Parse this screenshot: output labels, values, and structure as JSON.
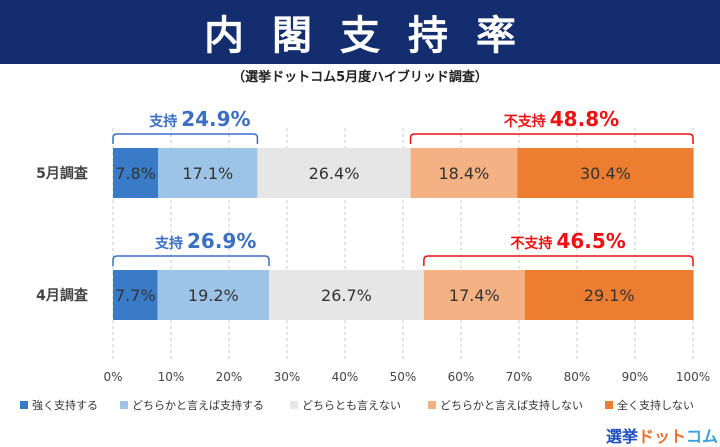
{
  "header": {
    "title": "内閣支持率",
    "subtitle": "（選挙ドットコム5月度ハイブリッド調査）"
  },
  "logo": {
    "text": "選挙ドットコム"
  },
  "colors": {
    "banner": "#142d6e",
    "strong_support": "#3a7bc8",
    "somewhat_support": "#9dc3e6",
    "neither": "#e6e6e6",
    "somewhat_oppose": "#f4b183",
    "strong_oppose": "#ed7d31",
    "support_text": "#3a6fc4",
    "oppose_text": "#ee1111"
  },
  "chart_data": {
    "type": "bar",
    "orientation": "horizontal",
    "stacked": true,
    "categories": [
      "5月調査",
      "4月調査"
    ],
    "series": [
      {
        "name": "強く支持する",
        "values": [
          7.8,
          7.7
        ],
        "labels": [
          "7.8%",
          "7.7%"
        ]
      },
      {
        "name": "どちらかと言えば支持する",
        "values": [
          17.1,
          19.2
        ],
        "labels": [
          "17.1%",
          "19.2%"
        ]
      },
      {
        "name": "どちらとも言えない",
        "values": [
          26.4,
          26.7
        ],
        "labels": [
          "26.4%",
          "26.7%"
        ]
      },
      {
        "name": "どちらかと言えば支持しない",
        "values": [
          18.4,
          17.4
        ],
        "labels": [
          "18.4%",
          "17.4%"
        ]
      },
      {
        "name": "全く支持しない",
        "values": [
          30.4,
          29.1
        ],
        "labels": [
          "30.4%",
          "29.1%"
        ]
      }
    ],
    "annotations": [
      {
        "row": 0,
        "support_label": "支持",
        "support_value": "24.9%",
        "oppose_label": "不支持",
        "oppose_value": "48.8%"
      },
      {
        "row": 1,
        "support_label": "支持",
        "support_value": "26.9%",
        "oppose_label": "不支持",
        "oppose_value": "46.5%"
      }
    ],
    "xlim": [
      0,
      100
    ],
    "xticks": [
      "0%",
      "10%",
      "20%",
      "30%",
      "40%",
      "50%",
      "60%",
      "70%",
      "80%",
      "90%",
      "100%"
    ],
    "grid": "vertical dashed",
    "legend": "bottom"
  }
}
